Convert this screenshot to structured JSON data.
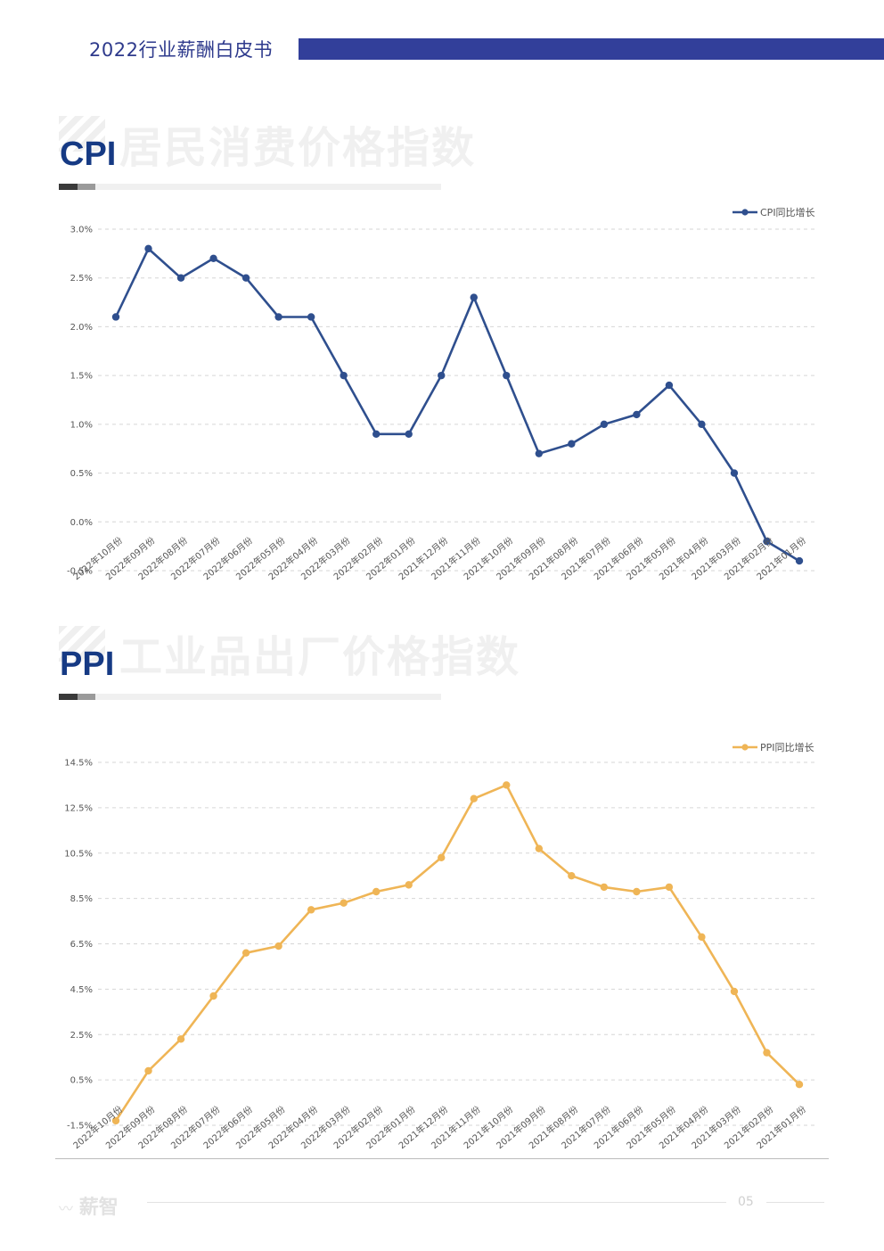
{
  "header": {
    "title": "2022行业薪酬白皮书"
  },
  "cpi_section": {
    "title": "CPI",
    "bg_title": "居民消费价格指数"
  },
  "ppi_section": {
    "title": "PPI",
    "bg_title": "工业品出厂价格指数"
  },
  "footer": {
    "logo": "薪智",
    "page_number": "05"
  },
  "colors": {
    "cpi_line": "#2f4f8e",
    "ppi_line": "#efb556",
    "header_bar": "#323f9a",
    "title": "#163a84"
  },
  "chart_data": [
    {
      "type": "line",
      "categories": [
        "2022年10月份",
        "2022年09月份",
        "2022年08月份",
        "2022年07月份",
        "2022年06月份",
        "2022年05月份",
        "2022年04月份",
        "2022年03月份",
        "2022年02月份",
        "2022年01月份",
        "2021年12月份",
        "2021年11月份",
        "2021年10月份",
        "2021年09月份",
        "2021年08月份",
        "2021年07月份",
        "2021年06月份",
        "2021年05月份",
        "2021年04月份",
        "2021年03月份",
        "2021年02月份",
        "2021年01月份"
      ],
      "series": [
        {
          "name": "CPI同比增长",
          "values": [
            2.1,
            2.8,
            2.5,
            2.7,
            2.5,
            2.1,
            2.1,
            1.5,
            0.9,
            0.9,
            1.5,
            2.3,
            1.5,
            0.7,
            0.8,
            1.0,
            1.1,
            1.4,
            1.0,
            0.5,
            -0.2,
            -0.4
          ]
        }
      ],
      "yticks": [
        "-0.5%",
        "0.0%",
        "0.5%",
        "1.0%",
        "1.5%",
        "2.0%",
        "2.5%",
        "3.0%"
      ],
      "ylim": [
        -0.5,
        3.0
      ],
      "grid": true,
      "legend": "top-right"
    },
    {
      "type": "line",
      "categories": [
        "2022年10月份",
        "2022年09月份",
        "2022年08月份",
        "2022年07月份",
        "2022年06月份",
        "2022年05月份",
        "2022年04月份",
        "2022年03月份",
        "2022年02月份",
        "2022年01月份",
        "2021年12月份",
        "2021年11月份",
        "2021年10月份",
        "2021年09月份",
        "2021年08月份",
        "2021年07月份",
        "2021年06月份",
        "2021年05月份",
        "2021年04月份",
        "2021年03月份",
        "2021年02月份",
        "2021年01月份"
      ],
      "series": [
        {
          "name": "PPI同比增长",
          "values": [
            -1.3,
            0.9,
            2.3,
            4.2,
            6.1,
            6.4,
            8.0,
            8.3,
            8.8,
            9.1,
            10.3,
            12.9,
            13.5,
            10.7,
            9.5,
            9.0,
            8.8,
            9.0,
            6.8,
            4.4,
            1.7,
            0.3
          ]
        }
      ],
      "yticks": [
        "-1.5%",
        "0.5%",
        "2.5%",
        "4.5%",
        "6.5%",
        "8.5%",
        "10.5%",
        "12.5%",
        "14.5%"
      ],
      "ylim": [
        -1.5,
        14.5
      ],
      "grid": true,
      "legend": "top-right"
    }
  ]
}
